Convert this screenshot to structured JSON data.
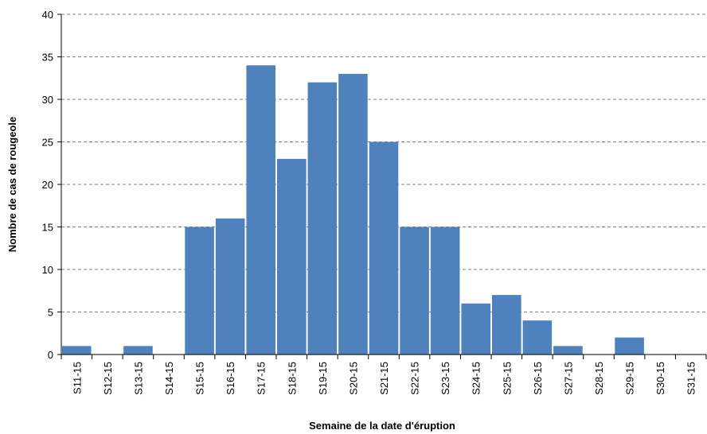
{
  "chart_data": {
    "type": "bar",
    "x_label": "Semaine de la date d'éruption",
    "y_label": "Nombre de cas de rougeole",
    "categories": [
      "S11-15",
      "S12-15",
      "S13-15",
      "S14-15",
      "S15-15",
      "S16-15",
      "S17-15",
      "S18-15",
      "S19-15",
      "S20-15",
      "S21-15",
      "S22-15",
      "S23-15",
      "S24-15",
      "S25-15",
      "S26-15",
      "S27-15",
      "S28-15",
      "S29-15",
      "S30-15",
      "S31-15"
    ],
    "values": [
      1,
      0,
      1,
      0,
      15,
      16,
      34,
      23,
      32,
      33,
      25,
      15,
      15,
      6,
      7,
      4,
      1,
      0,
      2,
      0,
      0
    ],
    "color": "#4f81bd",
    "ylim": [
      0,
      40
    ],
    "yticks": [
      0,
      5,
      10,
      15,
      20,
      25,
      30,
      35,
      40
    ],
    "grid": true
  }
}
